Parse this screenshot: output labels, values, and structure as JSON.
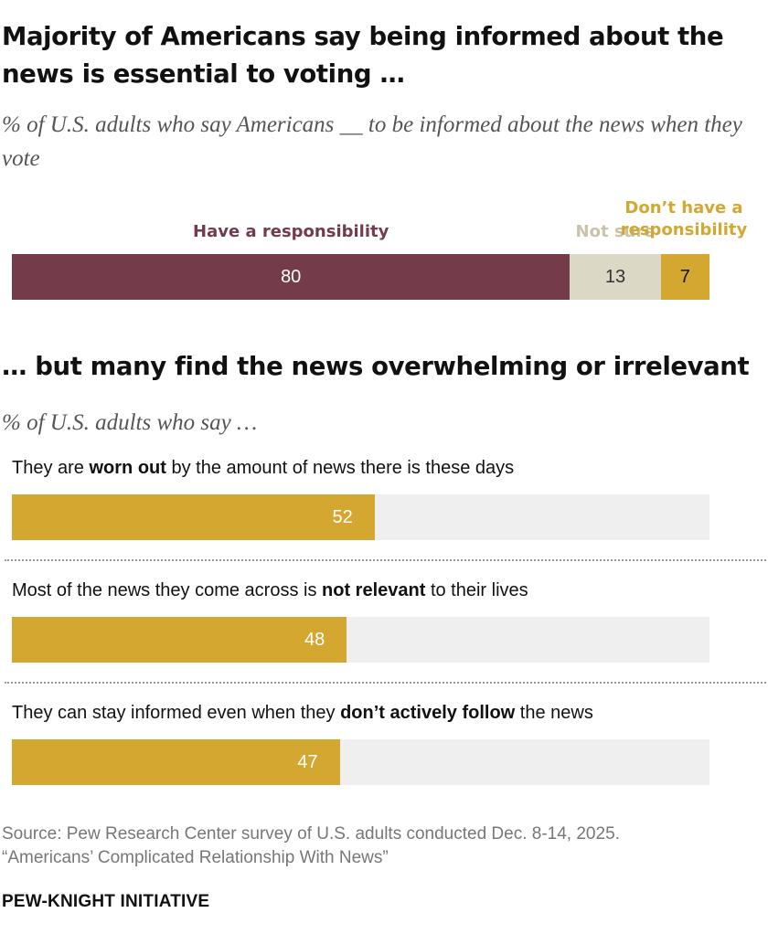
{
  "title": "Majority of Americans say being informed about the news is essential to voting …",
  "subtitle": "% of U.S. adults who say Americans __ to be informed about the news when they vote",
  "chart_data": [
    {
      "type": "bar",
      "stacked": true,
      "orientation": "horizontal",
      "title": "Majority of Americans say being informed about the news is essential to voting …",
      "subtitle": "% of U.S. adults who say Americans __ to be informed about the news when they vote",
      "xlim": [
        0,
        100
      ],
      "series": [
        {
          "name": "Have a responsibility",
          "values": [
            80
          ],
          "color": "#743c4a",
          "label_color": "#743c4a",
          "text_color": "#ffffff"
        },
        {
          "name": "Not sure",
          "values": [
            13
          ],
          "color": "#dcd8c6",
          "label_color": "#c9c3a8",
          "text_color": "#333333"
        },
        {
          "name": "Don’t have a responsibility",
          "name_lines": [
            "Don’t have a",
            "responsibility"
          ],
          "values": [
            7
          ],
          "color": "#d3a730",
          "label_color": "#d3a730",
          "text_color": "#111111"
        }
      ]
    },
    {
      "type": "bar",
      "orientation": "horizontal",
      "title": "… but many find the news overwhelming or irrelevant",
      "subtitle": "% of U.S. adults who say …",
      "xlim": [
        0,
        100
      ],
      "bar_color": "#d3a730",
      "track_color": "#efefef",
      "categories": [
        {
          "pre": "They are ",
          "bold": "worn out",
          "post": " by the amount of news there is these days"
        },
        {
          "pre": "Most of the news they come across is ",
          "bold": "not relevant",
          "post": " to their lives"
        },
        {
          "pre": "They can stay informed even when they ",
          "bold": "don’t actively follow",
          "post": " the news"
        }
      ],
      "values": [
        52,
        48,
        47
      ]
    }
  ],
  "source": {
    "line1": "Source: Pew Research Center survey of U.S. adults conducted Dec. 8-14, 2025.",
    "line2": "“Americans’ Complicated Relationship With News”"
  },
  "brand": "PEW-KNIGHT INITIATIVE"
}
